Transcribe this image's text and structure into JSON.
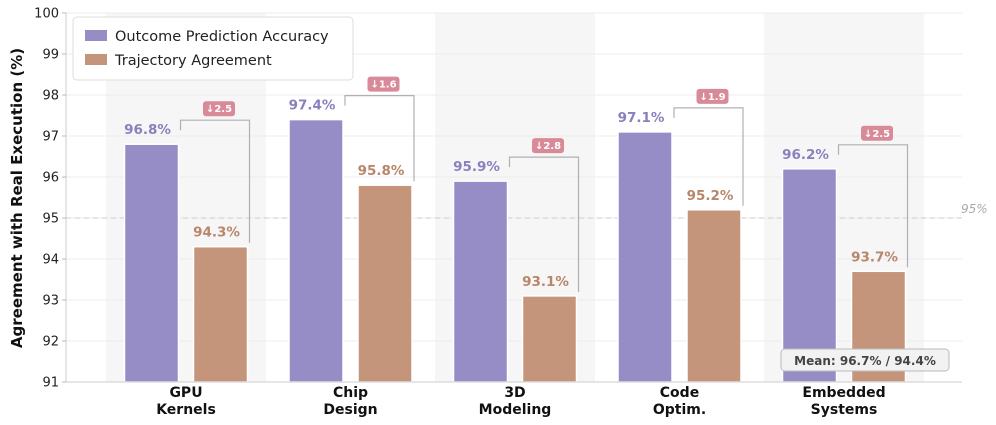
{
  "chart_data": {
    "type": "bar",
    "ylabel": "Agreement with Real Execution (%)",
    "ylim": [
      91,
      100
    ],
    "yticks": [
      "91",
      "92",
      "93",
      "94",
      "95",
      "96",
      "97",
      "98",
      "99",
      "100"
    ],
    "grid": true,
    "legend_position": "top-left",
    "categories": [
      {
        "line1": "GPU",
        "line2": "Kernels"
      },
      {
        "line1": "Chip",
        "line2": "Design"
      },
      {
        "line1": "3D",
        "line2": "Modeling"
      },
      {
        "line1": "Code",
        "line2": "Optim."
      },
      {
        "line1": "Embedded",
        "line2": "Systems"
      }
    ],
    "series": [
      {
        "name": "Outcome Prediction Accuracy",
        "color": "#968cc6",
        "label_color": "#8a80bd",
        "values": [
          96.8,
          97.4,
          95.9,
          97.1,
          96.2
        ],
        "labels": [
          "96.8%",
          "97.4%",
          "95.9%",
          "97.1%",
          "96.2%"
        ]
      },
      {
        "name": "Trajectory Agreement",
        "color": "#c4957a",
        "label_color": "#b8866a",
        "values": [
          94.3,
          95.8,
          93.1,
          95.2,
          93.7
        ],
        "labels": [
          "94.3%",
          "95.8%",
          "93.1%",
          "95.2%",
          "93.7%"
        ]
      }
    ],
    "drops": [
      "↓2.5",
      "↓1.6",
      "↓2.8",
      "↓1.9",
      "↓2.5"
    ],
    "drop_color": "#d98a99",
    "reference_line": {
      "value": 95,
      "label": "95%"
    },
    "mean_box": "Mean:  96.7%  /  94.4%"
  }
}
